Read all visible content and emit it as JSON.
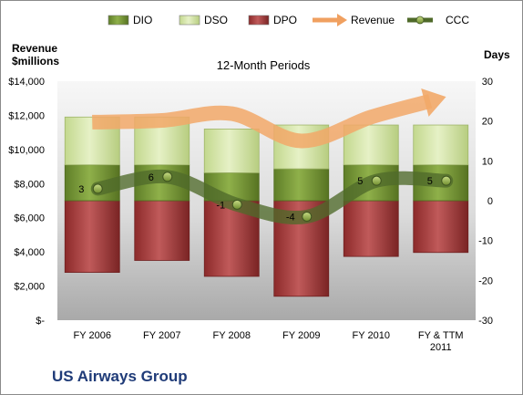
{
  "chart_data": {
    "type": "bar",
    "title": "12-Month Periods",
    "company": "US Airways Group",
    "left_axis_title": [
      "Revenue",
      "$millions"
    ],
    "right_axis_title": "Days",
    "categories": [
      "FY 2006",
      "FY 2007",
      "FY 2008",
      "FY 2009",
      "FY 2010",
      [
        "FY & TTM",
        "2011"
      ]
    ],
    "left_ylim": [
      0,
      14000
    ],
    "left_ticks": [
      "$-",
      "$2,000",
      "$4,000",
      "$6,000",
      "$8,000",
      "$10,000",
      "$12,000",
      "$14,000"
    ],
    "right_ylim": [
      -30,
      30
    ],
    "right_ticks": [
      "-30",
      "-20",
      "-10",
      "0",
      "10",
      "20",
      "30"
    ],
    "legend": [
      {
        "name": "DIO",
        "kind": "bar",
        "color": "#7a9a3a"
      },
      {
        "name": "DSO",
        "kind": "bar",
        "color": "#d4e6a8"
      },
      {
        "name": "DPO",
        "kind": "bar",
        "color": "#b04848"
      },
      {
        "name": "Revenue",
        "kind": "arrow",
        "color": "#f0a060"
      },
      {
        "name": "CCC",
        "kind": "line",
        "color": "#4f6a2a"
      }
    ],
    "series": [
      {
        "name": "DPO",
        "unit": "days",
        "values": [
          18,
          15,
          19,
          24,
          14,
          13
        ]
      },
      {
        "name": "DIO",
        "unit": "days",
        "values": [
          9,
          9,
          7,
          8,
          9,
          9
        ]
      },
      {
        "name": "DSO",
        "unit": "days",
        "values": [
          12,
          12,
          11,
          11,
          10,
          10
        ]
      },
      {
        "name": "Revenue",
        "unit": "$millions",
        "values": [
          11600,
          11700,
          12100,
          10500,
          11900,
          13000
        ]
      },
      {
        "name": "CCC",
        "unit": "days",
        "values": [
          3,
          6,
          -1,
          -4,
          5,
          5
        ],
        "labels": [
          "3",
          "6",
          "-1",
          "-4",
          "5",
          "5"
        ]
      }
    ]
  }
}
